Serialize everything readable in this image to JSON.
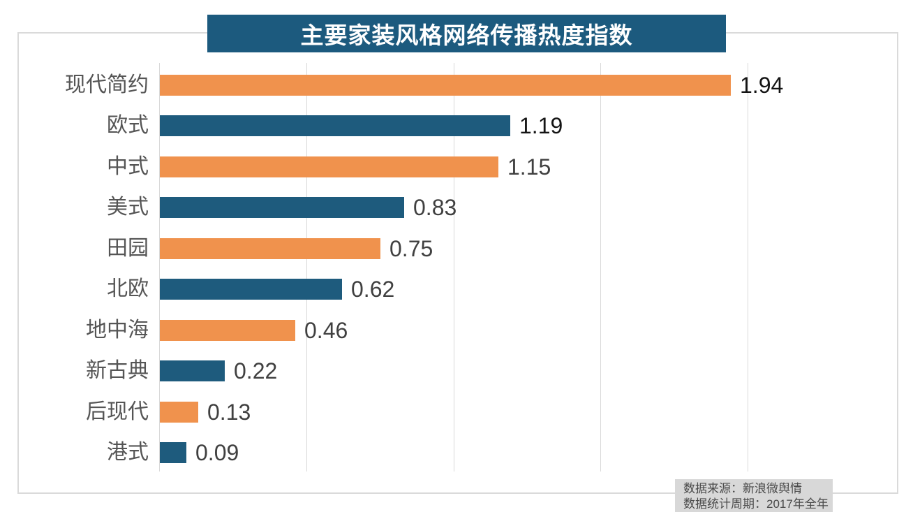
{
  "title": {
    "text": "主要家装风格网络传播热度指数",
    "bg_color": "#1C5A7E",
    "text_color": "#FFFFFF"
  },
  "chart_data": {
    "type": "bar",
    "orientation": "horizontal",
    "title": "主要家装风格网络传播热度指数",
    "xlim": [
      0,
      2.0
    ],
    "gridline_values": [
      0,
      0.5,
      1.0,
      1.5,
      2.0
    ],
    "grid": true,
    "legend": false,
    "categories": [
      "现代简约",
      "欧式",
      "中式",
      "美式",
      "田园",
      "北欧",
      "地中海",
      "新古典",
      "后现代",
      "港式"
    ],
    "values": [
      1.94,
      1.19,
      1.15,
      0.83,
      0.75,
      0.62,
      0.46,
      0.22,
      0.13,
      0.09
    ],
    "rows": [
      {
        "label": "现代简约",
        "value": 1.94,
        "display": "1.94",
        "bar_color": "#F0924D",
        "value_color": "#141414"
      },
      {
        "label": "欧式",
        "value": 1.19,
        "display": "1.19",
        "bar_color": "#1E5B7D",
        "value_color": "#141414"
      },
      {
        "label": "中式",
        "value": 1.15,
        "display": "1.15",
        "bar_color": "#F0924D",
        "value_color": "#404040"
      },
      {
        "label": "美式",
        "value": 0.83,
        "display": "0.83",
        "bar_color": "#1E5B7D",
        "value_color": "#404040"
      },
      {
        "label": "田园",
        "value": 0.75,
        "display": "0.75",
        "bar_color": "#F0924D",
        "value_color": "#404040"
      },
      {
        "label": "北欧",
        "value": 0.62,
        "display": "0.62",
        "bar_color": "#1E5B7D",
        "value_color": "#404040"
      },
      {
        "label": "地中海",
        "value": 0.46,
        "display": "0.46",
        "bar_color": "#F0924D",
        "value_color": "#404040"
      },
      {
        "label": "新古典",
        "value": 0.22,
        "display": "0.22",
        "bar_color": "#1E5B7D",
        "value_color": "#404040"
      },
      {
        "label": "后现代",
        "value": 0.13,
        "display": "0.13",
        "bar_color": "#F0924D",
        "value_color": "#404040"
      },
      {
        "label": "港式",
        "value": 0.09,
        "display": "0.09",
        "bar_color": "#1E5B7D",
        "value_color": "#404040"
      }
    ],
    "colors": {
      "orange": "#F0924D",
      "blue": "#1E5B7D",
      "gridline": "#D9D9D9",
      "category_label": "#555555",
      "border": "#DADADA"
    }
  },
  "source_note": {
    "line1": "数据来源：新浪微舆情",
    "line2": "数据统计周期：2017年全年",
    "bg_color": "#D8D8D8",
    "text_color": "#4A4A4A"
  }
}
